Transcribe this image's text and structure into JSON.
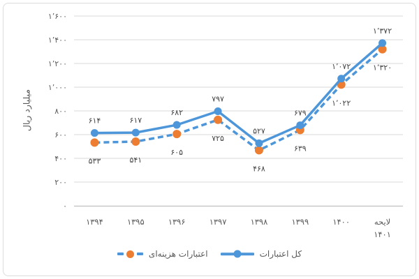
{
  "chart_data": {
    "type": "line",
    "title": "",
    "ylabel": "میلیارد ریال",
    "ylim": [
      0,
      1600
    ],
    "ytick_step": 200,
    "grid": true,
    "legend_position": "bottom",
    "categories": [
      "۱۳۹۴",
      "۱۳۹۵",
      "۱۳۹۶",
      "۱۳۹۷",
      "۱۳۹۸",
      "۱۳۹۹",
      "۱۴۰۰",
      "لایحه ۱۴۰۱"
    ],
    "categories_values": [
      1394,
      1395,
      1396,
      1397,
      1398,
      1399,
      1400,
      1401
    ],
    "categories_lines": [
      [
        "۱۳۹۴"
      ],
      [
        "۱۳۹۵"
      ],
      [
        "۱۳۹۶"
      ],
      [
        "۱۳۹۷"
      ],
      [
        "۱۳۹۸"
      ],
      [
        "۱۳۹۹"
      ],
      [
        "۱۴۰۰"
      ],
      [
        "لایحه",
        "۱۴۰۱"
      ]
    ],
    "yticks": [
      {
        "v": 0,
        "label": "۰"
      },
      {
        "v": 200,
        "label": "۲۰۰"
      },
      {
        "v": 400,
        "label": "۴۰۰"
      },
      {
        "v": 600,
        "label": "۶۰۰"
      },
      {
        "v": 800,
        "label": "۸۰۰"
      },
      {
        "v": 1000,
        "label": "۱٬۰۰۰"
      },
      {
        "v": 1200,
        "label": "۱٬۲۰۰"
      },
      {
        "v": 1400,
        "label": "۱٬۴۰۰"
      },
      {
        "v": 1600,
        "label": "۱٬۶۰۰"
      }
    ],
    "series": [
      {
        "id": "expenditure",
        "name": "اعتبارات هزینه‌ای",
        "values": [
          533,
          541,
          605,
          725,
          468,
          639,
          1022,
          1320
        ],
        "labels": [
          "۵۳۳",
          "۵۴۱",
          "۶۰۵",
          "۷۲۵",
          "۴۶۸",
          "۶۳۹",
          "۱٬۰۲۲",
          "۱٬۳۲۰"
        ],
        "line_style": "dashed",
        "line_color": "#4D96D9",
        "marker_color": "#ED7D31",
        "label_side": "below"
      },
      {
        "id": "total",
        "name": "کل اعتبارات",
        "values": [
          614,
          617,
          682,
          797,
          527,
          679,
          1072,
          1372
        ],
        "labels": [
          "۶۱۴",
          "۶۱۷",
          "۶۸۲",
          "۷۹۷",
          "۵۲۷",
          "۶۷۹",
          "۱٬۰۷۲",
          "۱٬۳۷۲"
        ],
        "line_style": "solid",
        "line_color": "#4D96D9",
        "marker_color": "#4D96D9",
        "label_side": "above"
      }
    ]
  },
  "legend": {
    "expenditure": {
      "label": "اعتبارات هزینه‌ای"
    },
    "total": {
      "label": "کل اعتبارات"
    }
  },
  "colors": {
    "blue": "#4D96D9",
    "orange": "#ED7D31",
    "gridline": "#D9D9D9",
    "axis_line": "#BFBFBF",
    "axis_text": "#595959",
    "data_label_text": "#444444",
    "frame_border": "#DCDCDC"
  }
}
